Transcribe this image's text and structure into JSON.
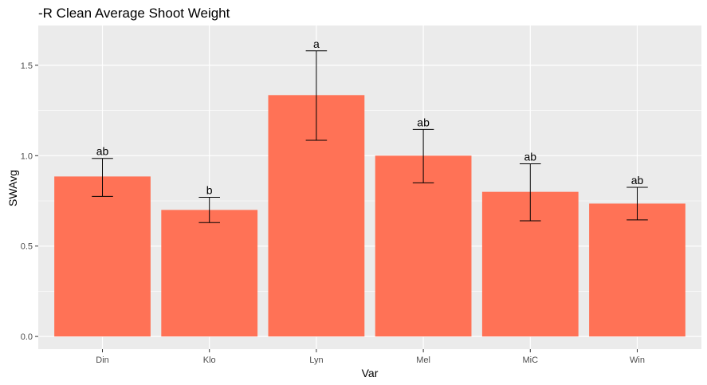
{
  "chart_data": {
    "type": "bar",
    "title": "-R Clean Average Shoot Weight",
    "xlabel": "Var",
    "ylabel": "SWAvg",
    "categories": [
      "Din",
      "Klo",
      "Lyn",
      "Mel",
      "MiC",
      "Win"
    ],
    "values": [
      0.885,
      0.7,
      1.335,
      1.0,
      0.8,
      0.735
    ],
    "error_low": [
      0.775,
      0.63,
      1.085,
      0.85,
      0.64,
      0.645
    ],
    "error_high": [
      0.985,
      0.77,
      1.58,
      1.145,
      0.955,
      0.825
    ],
    "group_labels": [
      "ab",
      "b",
      "a",
      "ab",
      "ab",
      "ab"
    ],
    "ylim": [
      -0.07,
      1.72
    ],
    "yticks": [
      0.0,
      0.5,
      1.0,
      1.5
    ],
    "ytick_labels": [
      "0.0",
      "0.5",
      "1.0",
      "1.5"
    ],
    "grid": true,
    "legend": "none",
    "colors": {
      "bar": "#ff7256",
      "panel": "#ebebeb",
      "grid": "#ffffff",
      "error_bar": "#000000"
    }
  }
}
